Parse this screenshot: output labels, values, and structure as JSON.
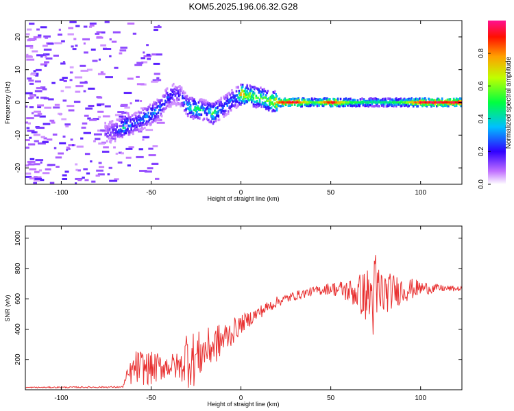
{
  "title": "KOM5.2025.196.06.32.G28",
  "chart_data": [
    {
      "type": "heatmap",
      "xlabel": "Height of straight line (km)",
      "ylabel": "Frequency (Hz)",
      "xlim": [
        -120,
        123
      ],
      "ylim": [
        -25,
        25
      ],
      "xticks": [
        -100,
        -50,
        0,
        50,
        100
      ],
      "yticks": [
        -20,
        -10,
        0,
        10,
        20
      ],
      "colorbar": {
        "label": "Normalized spectral amplitude",
        "range": [
          0,
          1
        ],
        "ticks": [
          "0.0",
          "0.2",
          "0.4",
          "0.6",
          "0.8"
        ]
      },
      "ridge": [
        {
          "x": -75,
          "y": -9.5,
          "a": 0.15
        },
        {
          "x": -70,
          "y": -8.5,
          "a": 0.2
        },
        {
          "x": -66,
          "y": -7.5,
          "a": 0.45
        },
        {
          "x": -60,
          "y": -6.5,
          "a": 0.25
        },
        {
          "x": -55,
          "y": -5.0,
          "a": 0.3
        },
        {
          "x": -50,
          "y": -3.5,
          "a": 0.35
        },
        {
          "x": -45,
          "y": -1.5,
          "a": 0.3
        },
        {
          "x": -42,
          "y": 1.0,
          "a": 0.25
        },
        {
          "x": -38,
          "y": 2.5,
          "a": 0.2
        },
        {
          "x": -34,
          "y": 2.0,
          "a": 0.2
        },
        {
          "x": -30,
          "y": -1.5,
          "a": 0.4
        },
        {
          "x": -25,
          "y": -2.0,
          "a": 0.5
        },
        {
          "x": -20,
          "y": -2.5,
          "a": 0.3
        },
        {
          "x": -16,
          "y": -3.5,
          "a": 0.55
        },
        {
          "x": -12,
          "y": -2.0,
          "a": 0.3
        },
        {
          "x": -8,
          "y": -0.5,
          "a": 0.3
        },
        {
          "x": -3,
          "y": 1.5,
          "a": 0.3
        },
        {
          "x": 0,
          "y": 2.5,
          "a": 0.8
        },
        {
          "x": 5,
          "y": 2.0,
          "a": 0.6
        },
        {
          "x": 10,
          "y": 1.5,
          "a": 0.55
        },
        {
          "x": 15,
          "y": 0.5,
          "a": 0.6
        },
        {
          "x": 20,
          "y": 0.0,
          "a": 0.85
        },
        {
          "x": 30,
          "y": 0.0,
          "a": 0.95
        },
        {
          "x": 40,
          "y": 0.0,
          "a": 0.5
        },
        {
          "x": 50,
          "y": 0.0,
          "a": 0.95
        },
        {
          "x": 60,
          "y": 0.0,
          "a": 0.55
        },
        {
          "x": 70,
          "y": 0.0,
          "a": 0.45
        },
        {
          "x": 80,
          "y": 0.0,
          "a": 0.45
        },
        {
          "x": 90,
          "y": 0.0,
          "a": 0.55
        },
        {
          "x": 100,
          "y": 0.0,
          "a": 0.95
        },
        {
          "x": 110,
          "y": 0.0,
          "a": 0.95
        },
        {
          "x": 123,
          "y": 0.0,
          "a": 0.95
        }
      ]
    },
    {
      "type": "line",
      "xlabel": "Height of straight line (km)",
      "ylabel": "SNR (v/v)",
      "xlim": [
        -120,
        123
      ],
      "ylim": [
        0,
        1080
      ],
      "xticks": [
        -100,
        -50,
        0,
        50,
        100
      ],
      "yticks": [
        200,
        400,
        600,
        800,
        1000
      ],
      "color": "#e83030",
      "envelope": [
        {
          "x": -120,
          "base": 15,
          "amp": 4
        },
        {
          "x": -66,
          "base": 18,
          "amp": 5
        },
        {
          "x": -63,
          "base": 90,
          "amp": 60
        },
        {
          "x": -58,
          "base": 150,
          "amp": 120
        },
        {
          "x": -50,
          "base": 140,
          "amp": 110
        },
        {
          "x": -40,
          "base": 160,
          "amp": 80
        },
        {
          "x": -33,
          "base": 150,
          "amp": 100
        },
        {
          "x": -30,
          "base": 230,
          "amp": 220
        },
        {
          "x": -26,
          "base": 200,
          "amp": 180
        },
        {
          "x": -20,
          "base": 260,
          "amp": 140
        },
        {
          "x": -10,
          "base": 330,
          "amp": 120
        },
        {
          "x": 0,
          "base": 430,
          "amp": 60
        },
        {
          "x": 10,
          "base": 510,
          "amp": 45
        },
        {
          "x": 20,
          "base": 580,
          "amp": 35
        },
        {
          "x": 30,
          "base": 620,
          "amp": 30
        },
        {
          "x": 40,
          "base": 650,
          "amp": 30
        },
        {
          "x": 50,
          "base": 670,
          "amp": 40
        },
        {
          "x": 60,
          "base": 650,
          "amp": 80
        },
        {
          "x": 65,
          "base": 640,
          "amp": 120
        },
        {
          "x": 70,
          "base": 620,
          "amp": 180
        },
        {
          "x": 75,
          "base": 600,
          "amp": 330
        },
        {
          "x": 80,
          "base": 640,
          "amp": 140
        },
        {
          "x": 90,
          "base": 660,
          "amp": 90
        },
        {
          "x": 100,
          "base": 670,
          "amp": 50
        },
        {
          "x": 110,
          "base": 670,
          "amp": 25
        },
        {
          "x": 123,
          "base": 665,
          "amp": 15
        }
      ]
    }
  ]
}
